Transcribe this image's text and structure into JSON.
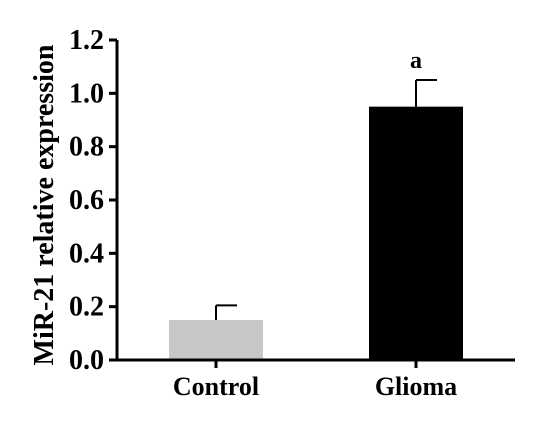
{
  "chart_data": {
    "type": "bar",
    "title": "",
    "xlabel": "",
    "ylabel": "MiR-21 relative expression",
    "ylim": [
      0,
      1.2
    ],
    "yticks": [
      "0.0",
      "0.2",
      "0.4",
      "0.6",
      "0.8",
      "1.0",
      "1.2"
    ],
    "categories": [
      "Control",
      "Glioma"
    ],
    "values": [
      0.15,
      0.95
    ],
    "errors": [
      0.055,
      0.1
    ],
    "bar_colors": [
      "#c8c8c8",
      "#000000"
    ],
    "annotations": [
      "",
      "a"
    ],
    "grid": false,
    "legend": "none"
  }
}
